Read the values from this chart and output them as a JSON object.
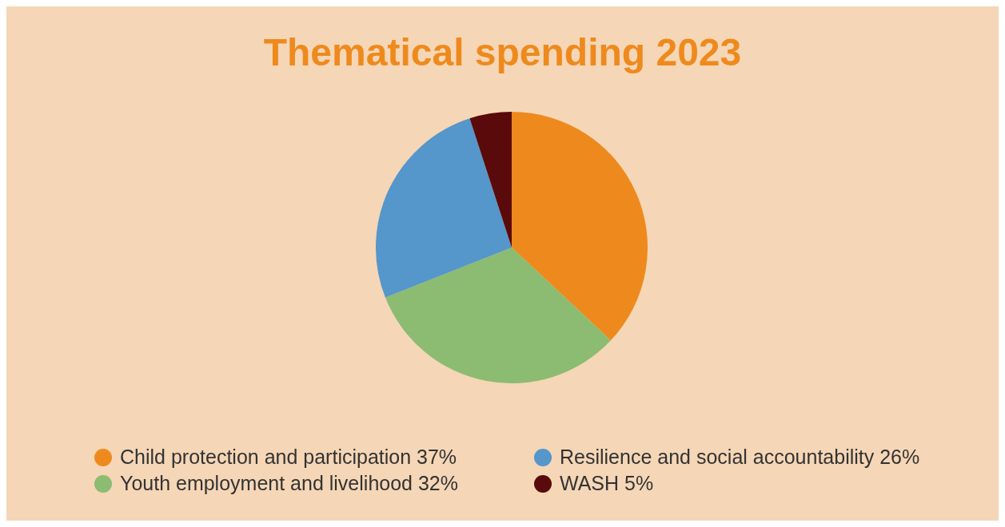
{
  "chart_data": {
    "type": "pie",
    "title": "Thematical spending 2023",
    "categories": [
      "Child protection and participation",
      "Youth employment and livelihood",
      "Resilience and social accountability",
      "WASH"
    ],
    "values": [
      37,
      32,
      26,
      5
    ],
    "value_labels": [
      "37%",
      "32%",
      "26%",
      "5%"
    ],
    "colors": [
      "#ee8a1d",
      "#8cbb72",
      "#5596cb",
      "#5a0a0a"
    ],
    "legend": "bottom"
  }
}
